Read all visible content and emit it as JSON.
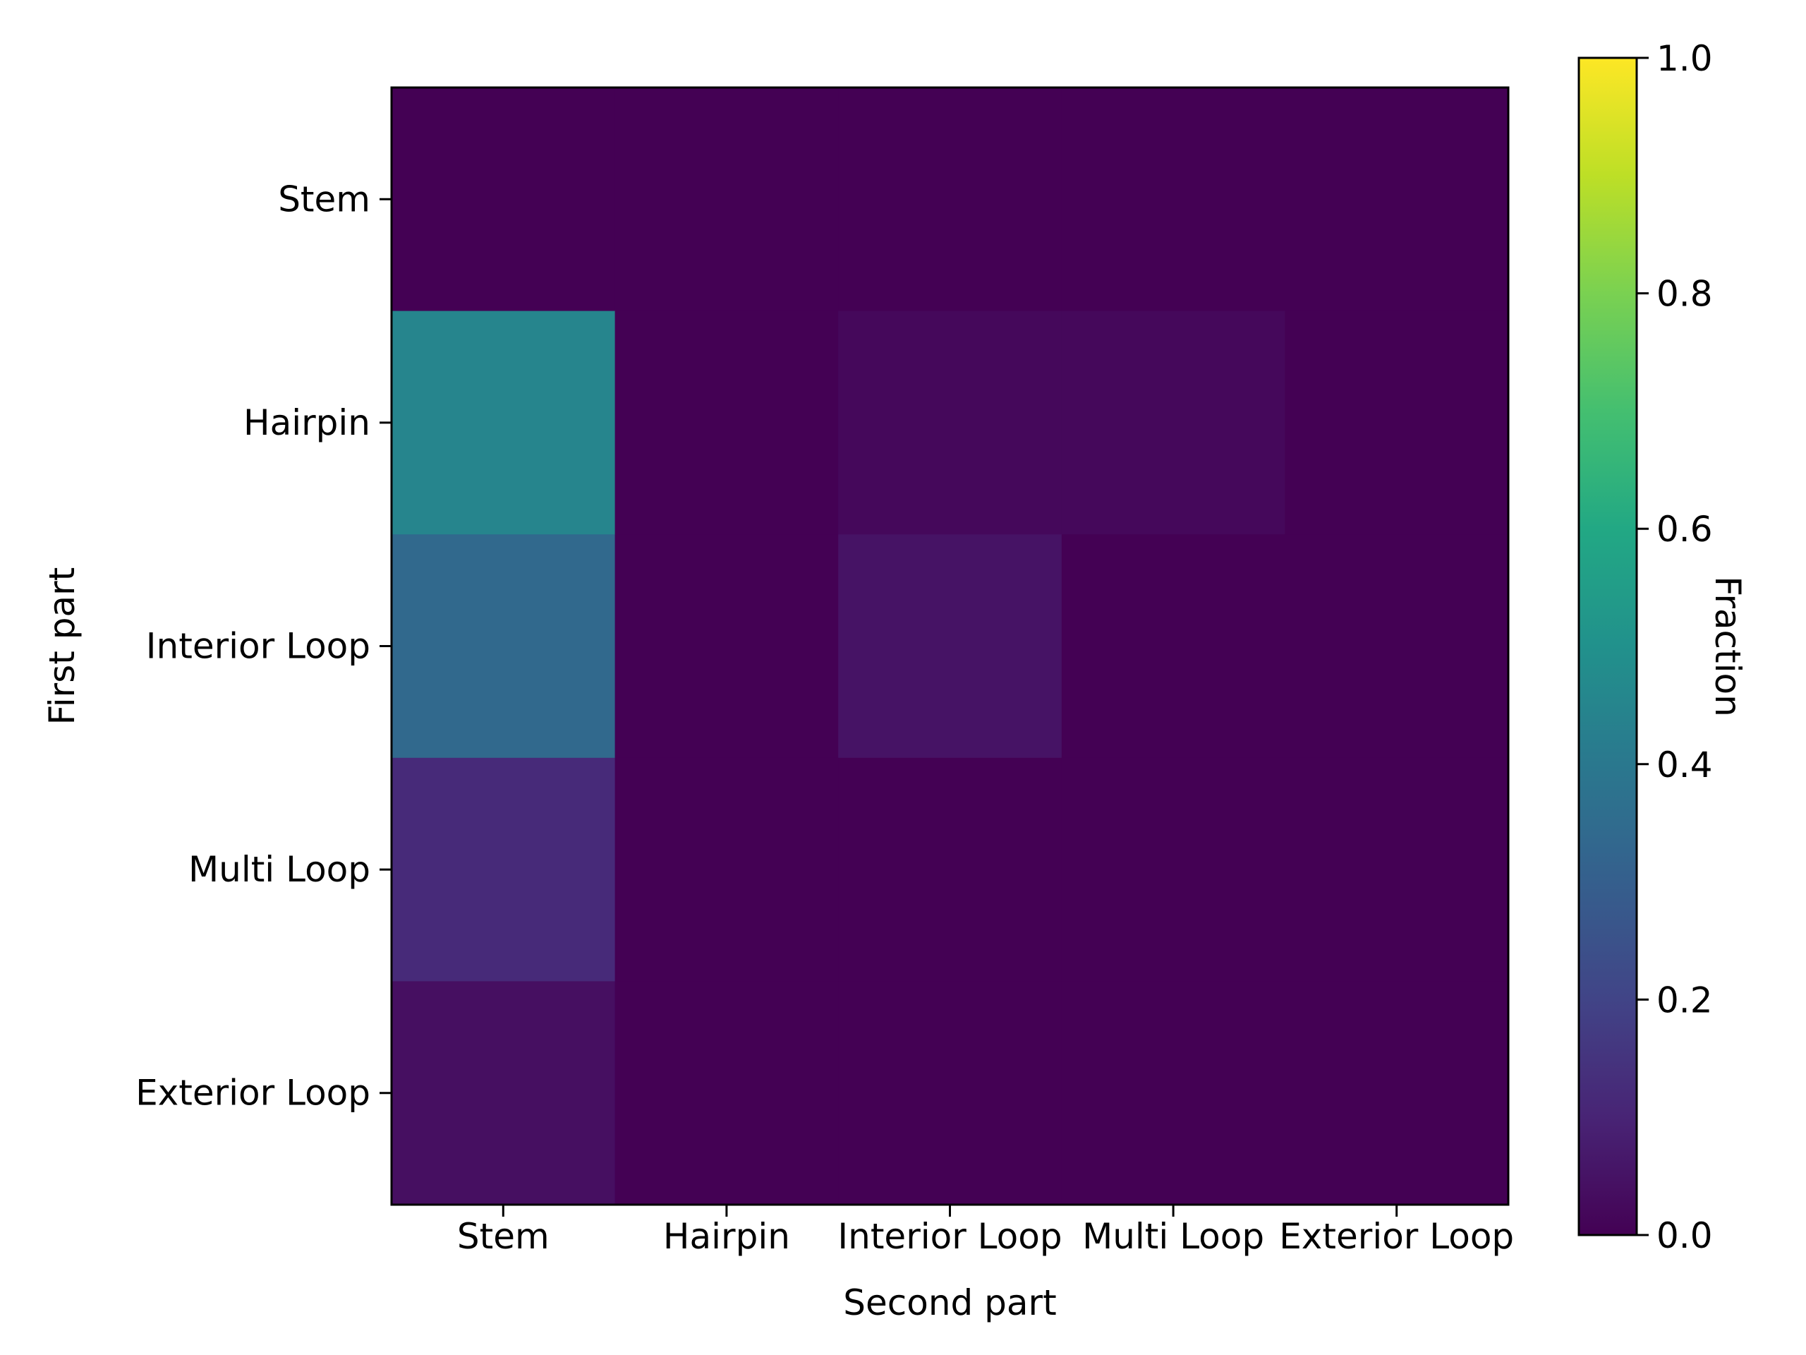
{
  "chart_data": {
    "type": "heatmap",
    "title": "",
    "xlabel": "Second part",
    "ylabel": "First part",
    "x_categories": [
      "Stem",
      "Hairpin",
      "Interior Loop",
      "Multi Loop",
      "Exterior Loop"
    ],
    "y_categories": [
      "Stem",
      "Hairpin",
      "Interior Loop",
      "Multi Loop",
      "Exterior Loop"
    ],
    "values": [
      [
        0.0,
        0.0,
        0.0,
        0.0,
        0.0
      ],
      [
        0.45,
        0.0,
        0.02,
        0.02,
        0.0
      ],
      [
        0.34,
        0.0,
        0.05,
        0.0,
        0.0
      ],
      [
        0.12,
        0.0,
        0.0,
        0.0,
        0.0
      ],
      [
        0.04,
        0.0,
        0.0,
        0.0,
        0.0
      ]
    ],
    "colormap": "viridis",
    "colorbar": {
      "label": "Fraction",
      "range": [
        0.0,
        1.0
      ],
      "ticks": [
        "0.0",
        "0.2",
        "0.4",
        "0.6",
        "0.8",
        "1.0"
      ]
    }
  }
}
